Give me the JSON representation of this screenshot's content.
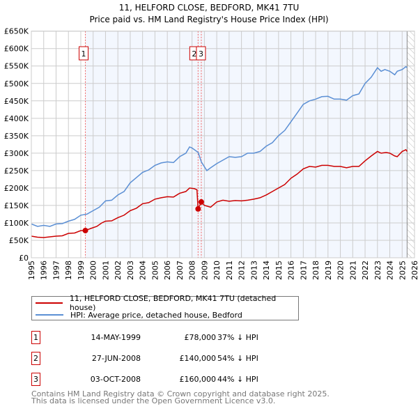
{
  "chart_data": {
    "type": "line",
    "title": "11, HELFORD CLOSE, BEDFORD, MK41 7TU",
    "subtitle": "Price paid vs. HM Land Registry's House Price Index (HPI)",
    "xlim": [
      1995,
      2026
    ],
    "ylim": [
      0,
      650000
    ],
    "grid": true,
    "x_ticks": [
      "1995",
      "1996",
      "1997",
      "1998",
      "1999",
      "2000",
      "2001",
      "2002",
      "2003",
      "2004",
      "2005",
      "2006",
      "2007",
      "2008",
      "2009",
      "2010",
      "2011",
      "2012",
      "2013",
      "2014",
      "2015",
      "2016",
      "2017",
      "2018",
      "2019",
      "2020",
      "2021",
      "2022",
      "2023",
      "2024",
      "2025",
      "2026"
    ],
    "y_ticks": [
      {
        "v": 0,
        "label": "£0"
      },
      {
        "v": 50000,
        "label": "£50K"
      },
      {
        "v": 100000,
        "label": "£100K"
      },
      {
        "v": 150000,
        "label": "£150K"
      },
      {
        "v": 200000,
        "label": "£200K"
      },
      {
        "v": 250000,
        "label": "£250K"
      },
      {
        "v": 300000,
        "label": "£300K"
      },
      {
        "v": 350000,
        "label": "£350K"
      },
      {
        "v": 400000,
        "label": "£400K"
      },
      {
        "v": 450000,
        "label": "£450K"
      },
      {
        "v": 500000,
        "label": "£500K"
      },
      {
        "v": 550000,
        "label": "£550K"
      },
      {
        "v": 600000,
        "label": "£600K"
      },
      {
        "v": 650000,
        "label": "£650K"
      }
    ],
    "series": [
      {
        "name": "11, HELFORD CLOSE, BEDFORD, MK41 7TU (detached house)",
        "color": "#cc0000",
        "x": [
          1995,
          1995.5,
          1996,
          1996.5,
          1997,
          1997.5,
          1998,
          1998.5,
          1999,
          1999.37,
          1999.8,
          2000.3,
          2000.7,
          2001,
          2001.5,
          2002,
          2002.5,
          2003,
          2003.5,
          2004,
          2004.5,
          2005,
          2005.5,
          2006,
          2006.5,
          2007,
          2007.5,
          2007.8,
          2008.2,
          2008.4,
          2008.49,
          2008.75,
          2009,
          2009.5,
          2010,
          2010.5,
          2011,
          2011.5,
          2012,
          2012.5,
          2013,
          2013.5,
          2014,
          2014.5,
          2015,
          2015.5,
          2016,
          2016.5,
          2017,
          2017.5,
          2018,
          2018.5,
          2019,
          2019.5,
          2020,
          2020.5,
          2021,
          2021.5,
          2022,
          2022.5,
          2023,
          2023.3,
          2023.7,
          2024,
          2024.4,
          2024.6,
          2025,
          2025.3,
          2025.4
        ],
        "values": [
          62000,
          59000,
          58000,
          60000,
          62000,
          63000,
          70000,
          71000,
          78000,
          78000,
          84000,
          90000,
          100000,
          105000,
          106000,
          115000,
          122000,
          135000,
          142000,
          155000,
          158000,
          168000,
          172000,
          175000,
          174000,
          185000,
          190000,
          200000,
          198000,
          195000,
          140000,
          160000,
          150000,
          145000,
          160000,
          165000,
          162000,
          164000,
          163000,
          165000,
          168000,
          172000,
          180000,
          190000,
          200000,
          210000,
          228000,
          240000,
          255000,
          262000,
          260000,
          265000,
          265000,
          262000,
          262000,
          258000,
          262000,
          262000,
          278000,
          292000,
          305000,
          300000,
          302000,
          300000,
          292000,
          290000,
          305000,
          310000,
          305000
        ]
      },
      {
        "name": "HPI: Average price, detached house, Bedford",
        "color": "#5b8fd4",
        "x": [
          1995,
          1995.5,
          1996,
          1996.5,
          1997,
          1997.5,
          1998,
          1998.5,
          1999,
          1999.5,
          2000,
          2000.5,
          2001,
          2001.5,
          2002,
          2002.5,
          2003,
          2003.5,
          2004,
          2004.5,
          2005,
          2005.5,
          2006,
          2006.5,
          2007,
          2007.5,
          2007.8,
          2008,
          2008.5,
          2008.75,
          2009.2,
          2009.5,
          2010,
          2010.5,
          2011,
          2011.5,
          2012,
          2012.5,
          2013,
          2013.5,
          2014,
          2014.5,
          2015,
          2015.5,
          2016,
          2016.5,
          2017,
          2017.5,
          2018,
          2018.5,
          2019,
          2019.5,
          2020,
          2020.5,
          2021,
          2021.5,
          2022,
          2022.5,
          2023,
          2023.3,
          2023.6,
          2024,
          2024.4,
          2024.6,
          2025,
          2025.3,
          2025.4
        ],
        "values": [
          97000,
          90000,
          93000,
          90000,
          97000,
          98000,
          105000,
          110000,
          122000,
          125000,
          135000,
          145000,
          163000,
          165000,
          180000,
          190000,
          215000,
          230000,
          245000,
          252000,
          265000,
          272000,
          275000,
          273000,
          290000,
          300000,
          318000,
          315000,
          302000,
          275000,
          250000,
          258000,
          270000,
          280000,
          290000,
          288000,
          290000,
          300000,
          300000,
          305000,
          320000,
          330000,
          350000,
          365000,
          390000,
          415000,
          440000,
          450000,
          455000,
          462000,
          463000,
          455000,
          455000,
          452000,
          465000,
          470000,
          500000,
          518000,
          545000,
          535000,
          540000,
          535000,
          525000,
          535000,
          540000,
          548000,
          545000
        ]
      }
    ],
    "sales": [
      {
        "id": "1",
        "x": 1999.37,
        "value": 78000
      },
      {
        "id": "2",
        "x": 2008.49,
        "value": 140000
      },
      {
        "id": "3",
        "x": 2008.75,
        "value": 160000
      }
    ],
    "data_end_x": 2025.4
  },
  "legend": {
    "property": "11, HELFORD CLOSE, BEDFORD, MK41 7TU (detached house)",
    "hpi": "HPI: Average price, detached house, Bedford"
  },
  "transactions": [
    {
      "num": "1",
      "date": "14-MAY-1999",
      "price": "£78,000",
      "hpi": "37% ↓ HPI"
    },
    {
      "num": "2",
      "date": "27-JUN-2008",
      "price": "£140,000",
      "hpi": "54% ↓ HPI"
    },
    {
      "num": "3",
      "date": "03-OCT-2008",
      "price": "£160,000",
      "hpi": "44% ↓ HPI"
    }
  ],
  "footer": {
    "line1": "Contains HM Land Registry data © Crown copyright and database right 2025.",
    "line2": "This data is licensed under the Open Government Licence v3.0."
  }
}
